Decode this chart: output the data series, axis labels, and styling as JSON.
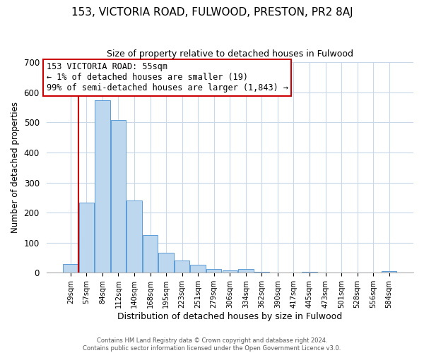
{
  "title": "153, VICTORIA ROAD, FULWOOD, PRESTON, PR2 8AJ",
  "subtitle": "Size of property relative to detached houses in Fulwood",
  "xlabel": "Distribution of detached houses by size in Fulwood",
  "ylabel": "Number of detached properties",
  "bar_labels": [
    "29sqm",
    "57sqm",
    "84sqm",
    "112sqm",
    "140sqm",
    "168sqm",
    "195sqm",
    "223sqm",
    "251sqm",
    "279sqm",
    "306sqm",
    "334sqm",
    "362sqm",
    "390sqm",
    "417sqm",
    "445sqm",
    "473sqm",
    "501sqm",
    "528sqm",
    "556sqm",
    "584sqm"
  ],
  "bar_values": [
    28,
    234,
    573,
    508,
    240,
    125,
    67,
    40,
    26,
    13,
    9,
    13,
    3,
    0,
    0,
    3,
    0,
    0,
    0,
    0,
    6
  ],
  "bar_color": "#bdd7ee",
  "bar_edge_color": "#5b9bd5",
  "annotation_title": "153 VICTORIA ROAD: 55sqm",
  "annotation_line1": "← 1% of detached houses are smaller (19)",
  "annotation_line2": "99% of semi-detached houses are larger (1,843) →",
  "vline_color": "#cc0000",
  "annotation_box_edge": "#cc0000",
  "footer1": "Contains HM Land Registry data © Crown copyright and database right 2024.",
  "footer2": "Contains public sector information licensed under the Open Government Licence v3.0.",
  "ylim": [
    0,
    700
  ],
  "yticks": [
    0,
    100,
    200,
    300,
    400,
    500,
    600,
    700
  ],
  "bg_color": "#ffffff",
  "grid_color": "#c8d8e8"
}
